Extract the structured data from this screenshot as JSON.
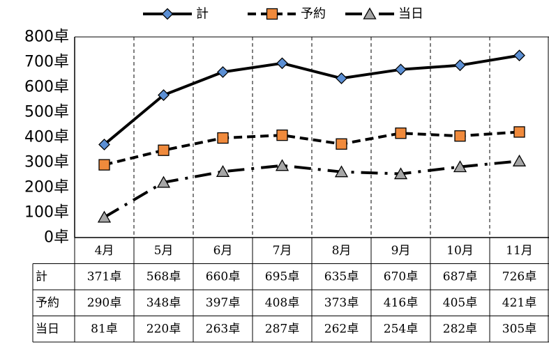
{
  "chart_data": {
    "type": "line",
    "categories": [
      "4月",
      "5月",
      "6月",
      "7月",
      "8月",
      "9月",
      "10月",
      "11月"
    ],
    "y_tick_labels": [
      "0卓",
      "100卓",
      "200卓",
      "300卓",
      "400卓",
      "500卓",
      "600卓",
      "700卓",
      "800卓"
    ],
    "ylim": [
      0,
      800
    ],
    "grid": "vertical dashed lines between categories",
    "legend_position": "top",
    "series": [
      {
        "name": "計",
        "values": [
          371,
          568,
          660,
          695,
          635,
          670,
          687,
          726
        ],
        "labels": [
          "371卓",
          "568卓",
          "660卓",
          "695卓",
          "635卓",
          "670卓",
          "687卓",
          "726卓"
        ],
        "line_style": "solid",
        "marker": "diamond",
        "marker_color": "#5B8FD4"
      },
      {
        "name": "予約",
        "values": [
          290,
          348,
          397,
          408,
          373,
          416,
          405,
          421
        ],
        "labels": [
          "290卓",
          "348卓",
          "397卓",
          "408卓",
          "373卓",
          "416卓",
          "405卓",
          "421卓"
        ],
        "line_style": "dashed",
        "marker": "square",
        "marker_color": "#F08A3C"
      },
      {
        "name": "当日",
        "values": [
          81,
          220,
          263,
          287,
          262,
          254,
          282,
          305
        ],
        "labels": [
          "81卓",
          "220卓",
          "263卓",
          "287卓",
          "262卓",
          "254卓",
          "282卓",
          "305卓"
        ],
        "line_style": "dash-dot",
        "marker": "triangle",
        "marker_color": "#A6A6A6"
      }
    ]
  }
}
